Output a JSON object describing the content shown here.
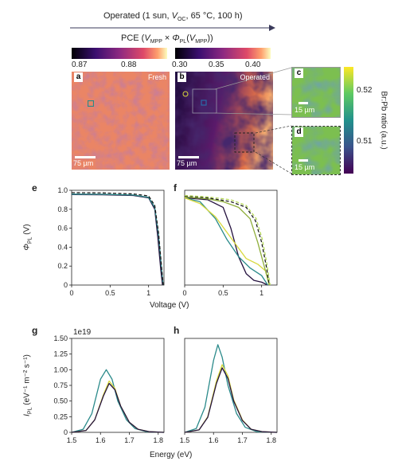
{
  "header": {
    "operated_prefix": "Operated (1 sun, ",
    "voc_main": "V",
    "voc_sub": "OC",
    "operated_suffix": ", 65 °C, 100 h)",
    "pce_prefix": "PCE (",
    "vmpp_main": "V",
    "vmpp_sub": "MPP",
    "times": " × ",
    "phi": "Φ",
    "phi_sub": "PL",
    "phi_arg_open": "(",
    "phi_arg_main": "V",
    "phi_arg_sub": "MPP",
    "pce_suffix": "))"
  },
  "colorbar_pce": {
    "ticks": [
      "0.87",
      "0.88",
      "0.30",
      "0.35",
      "0.40"
    ]
  },
  "colorbar_ratio": {
    "label": "Br:Pb ratio (a.u.)",
    "ticks": [
      "0.52",
      "0.51"
    ]
  },
  "panels": {
    "a": {
      "letter": "a",
      "tag": "Fresh",
      "scale": "75 µm"
    },
    "b": {
      "letter": "b",
      "tag": "Operated",
      "scale": "75 µm"
    },
    "c": {
      "letter": "c",
      "scale": "15 µm"
    },
    "d": {
      "letter": "d",
      "scale": "15 µm"
    },
    "e": {
      "letter": "e"
    },
    "f": {
      "letter": "f"
    },
    "g": {
      "letter": "g",
      "exponent": "1e19"
    },
    "h": {
      "letter": "h"
    }
  },
  "colors": {
    "teal": "#2a8a8a",
    "dark_navy": "#25123f",
    "yellow": "#d8d83a",
    "olive": "#8fae3a",
    "black_dashed": "#1a1a1a",
    "lime_dashed": "#b6d95a"
  },
  "chart_data": [
    {
      "type": "line",
      "panel": "e",
      "ylabel_main": "Φ",
      "ylabel_sub": "PL",
      "ylabel_unit": " (V)",
      "xlabel": "Voltage (V)",
      "xlim": [
        0,
        1.2
      ],
      "ylim": [
        0,
        1.0
      ],
      "xticks": [
        "0",
        "0.5",
        "1"
      ],
      "yticks": [
        "0",
        "0.2",
        "0.4",
        "0.6",
        "0.8",
        "1.0"
      ],
      "series": [
        {
          "color": "#25123f",
          "dashed": false,
          "x": [
            0,
            0.4,
            0.8,
            1.0,
            1.08,
            1.12,
            1.16,
            1.18
          ],
          "y": [
            0.955,
            0.953,
            0.945,
            0.92,
            0.8,
            0.5,
            0.15,
            0
          ]
        },
        {
          "color": "#2a8a8a",
          "dashed": false,
          "x": [
            0,
            0.4,
            0.8,
            1.0,
            1.08,
            1.13,
            1.17,
            1.19
          ],
          "y": [
            0.96,
            0.958,
            0.95,
            0.925,
            0.82,
            0.52,
            0.16,
            0
          ]
        },
        {
          "color": "#1a1a1a",
          "dashed": true,
          "x": [
            0,
            0.4,
            0.8,
            1.0,
            1.08,
            1.13,
            1.17,
            1.19
          ],
          "y": [
            0.975,
            0.972,
            0.962,
            0.94,
            0.84,
            0.55,
            0.18,
            0
          ]
        }
      ]
    },
    {
      "type": "line",
      "panel": "f",
      "xlim": [
        0,
        1.2
      ],
      "ylim": [
        0,
        1.0
      ],
      "xticks": [
        "0",
        "0.5",
        "1"
      ],
      "series": [
        {
          "color": "#25123f",
          "dashed": false,
          "x": [
            0,
            0.3,
            0.5,
            0.6,
            0.7,
            0.8,
            0.9,
            1.0,
            1.08
          ],
          "y": [
            0.92,
            0.9,
            0.82,
            0.6,
            0.3,
            0.12,
            0.05,
            0.03,
            0
          ]
        },
        {
          "color": "#2a8a8a",
          "dashed": false,
          "x": [
            0,
            0.2,
            0.4,
            0.55,
            0.7,
            0.85,
            1.0,
            1.08
          ],
          "y": [
            0.92,
            0.88,
            0.7,
            0.48,
            0.3,
            0.18,
            0.1,
            0
          ]
        },
        {
          "color": "#d8d83a",
          "dashed": false,
          "x": [
            0,
            0.2,
            0.4,
            0.6,
            0.8,
            0.95,
            1.05,
            1.1
          ],
          "y": [
            0.92,
            0.86,
            0.72,
            0.5,
            0.28,
            0.22,
            0.15,
            0
          ]
        },
        {
          "color": "#8fae3a",
          "dashed": false,
          "x": [
            0,
            0.3,
            0.5,
            0.7,
            0.85,
            0.95,
            1.05,
            1.1
          ],
          "y": [
            0.93,
            0.91,
            0.88,
            0.82,
            0.7,
            0.45,
            0.15,
            0
          ]
        },
        {
          "color": "#1a1a1a",
          "dashed": true,
          "x": [
            0,
            0.3,
            0.6,
            0.8,
            0.92,
            1.0,
            1.06,
            1.1
          ],
          "y": [
            0.94,
            0.92,
            0.88,
            0.82,
            0.68,
            0.45,
            0.2,
            0
          ]
        },
        {
          "color": "#b6d95a",
          "dashed": true,
          "x": [
            0,
            0.3,
            0.6,
            0.8,
            0.93,
            1.01,
            1.07,
            1.11
          ],
          "y": [
            0.945,
            0.93,
            0.9,
            0.84,
            0.7,
            0.48,
            0.22,
            0
          ]
        }
      ]
    },
    {
      "type": "line",
      "panel": "g",
      "ylabel_main": "I",
      "ylabel_sub": "PL",
      "ylabel_unit": " (eV⁻¹ m⁻² s⁻¹)",
      "xlabel": "Energy (eV)",
      "xlim": [
        1.5,
        1.82
      ],
      "ylim": [
        0,
        1.5
      ],
      "xticks": [
        "1.5",
        "1.6",
        "1.7",
        "1.8"
      ],
      "yticks": [
        "0",
        "0.25",
        "0.50",
        "0.75",
        "1.00",
        "1.25",
        "1.50"
      ],
      "series": [
        {
          "color": "#2a8a8a",
          "dashed": false,
          "x": [
            1.5,
            1.54,
            1.57,
            1.6,
            1.62,
            1.64,
            1.66,
            1.69,
            1.72,
            1.76,
            1.82
          ],
          "y": [
            0,
            0.05,
            0.3,
            0.85,
            1.0,
            0.85,
            0.5,
            0.2,
            0.06,
            0.01,
            0
          ]
        },
        {
          "color": "#d8d83a",
          "dashed": false,
          "x": [
            1.5,
            1.55,
            1.58,
            1.61,
            1.63,
            1.65,
            1.67,
            1.7,
            1.73,
            1.77,
            1.82
          ],
          "y": [
            0,
            0.03,
            0.2,
            0.6,
            0.82,
            0.7,
            0.42,
            0.16,
            0.05,
            0.01,
            0
          ]
        },
        {
          "color": "#25123f",
          "dashed": false,
          "x": [
            1.5,
            1.55,
            1.58,
            1.61,
            1.63,
            1.65,
            1.67,
            1.7,
            1.73,
            1.77,
            1.82
          ],
          "y": [
            0,
            0.03,
            0.2,
            0.58,
            0.78,
            0.68,
            0.42,
            0.16,
            0.05,
            0.01,
            0
          ]
        }
      ]
    },
    {
      "type": "line",
      "panel": "h",
      "xlim": [
        1.5,
        1.82
      ],
      "ylim": [
        0,
        1.5
      ],
      "xticks": [
        "1.5",
        "1.6",
        "1.7",
        "1.8"
      ],
      "series": [
        {
          "color": "#2a8a8a",
          "dashed": false,
          "x": [
            1.5,
            1.54,
            1.57,
            1.6,
            1.615,
            1.63,
            1.65,
            1.68,
            1.71,
            1.75,
            1.82
          ],
          "y": [
            0,
            0.06,
            0.4,
            1.15,
            1.4,
            1.2,
            0.75,
            0.3,
            0.08,
            0.01,
            0
          ]
        },
        {
          "color": "#d8d83a",
          "dashed": false,
          "x": [
            1.5,
            1.55,
            1.58,
            1.61,
            1.63,
            1.65,
            1.67,
            1.7,
            1.73,
            1.77,
            1.82
          ],
          "y": [
            0,
            0.04,
            0.25,
            0.82,
            1.08,
            0.9,
            0.52,
            0.2,
            0.05,
            0.01,
            0
          ]
        },
        {
          "color": "#25123f",
          "dashed": false,
          "x": [
            1.5,
            1.55,
            1.58,
            1.61,
            1.63,
            1.65,
            1.67,
            1.7,
            1.73,
            1.77,
            1.82
          ],
          "y": [
            0,
            0.04,
            0.24,
            0.78,
            1.03,
            0.86,
            0.5,
            0.19,
            0.05,
            0.01,
            0
          ]
        }
      ]
    }
  ]
}
